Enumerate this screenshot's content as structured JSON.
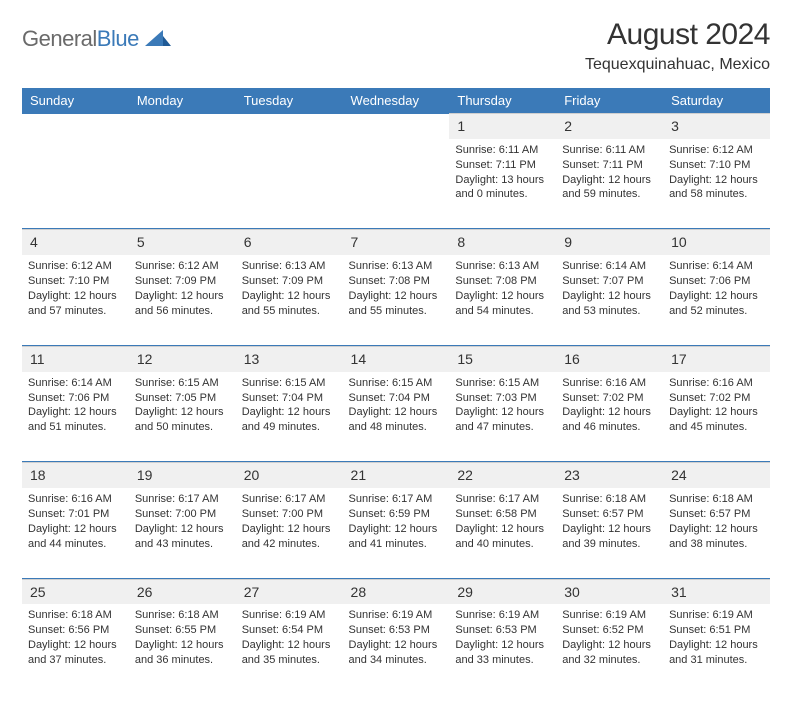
{
  "brand": {
    "part1": "General",
    "part2": "Blue"
  },
  "title": "August 2024",
  "subtitle": "Tequexquinahuac, Mexico",
  "colors": {
    "header_bg": "#3b7ab8",
    "header_text": "#ffffff",
    "daynum_bg": "#f0f0f0",
    "text": "#333333",
    "separator": "#3b7ab8",
    "page_bg": "#ffffff",
    "logo_gray": "#6a6a6a",
    "logo_blue": "#3b7ab8"
  },
  "typography": {
    "title_fontsize": 30,
    "subtitle_fontsize": 16,
    "dayheader_fontsize": 13,
    "daynum_fontsize": 14,
    "cell_fontsize": 11,
    "font_family": "Arial"
  },
  "day_headers": [
    "Sunday",
    "Monday",
    "Tuesday",
    "Wednesday",
    "Thursday",
    "Friday",
    "Saturday"
  ],
  "weeks": [
    [
      null,
      null,
      null,
      null,
      {
        "n": "1",
        "sr": "6:11 AM",
        "ss": "7:11 PM",
        "dl": "13 hours and 0 minutes."
      },
      {
        "n": "2",
        "sr": "6:11 AM",
        "ss": "7:11 PM",
        "dl": "12 hours and 59 minutes."
      },
      {
        "n": "3",
        "sr": "6:12 AM",
        "ss": "7:10 PM",
        "dl": "12 hours and 58 minutes."
      }
    ],
    [
      {
        "n": "4",
        "sr": "6:12 AM",
        "ss": "7:10 PM",
        "dl": "12 hours and 57 minutes."
      },
      {
        "n": "5",
        "sr": "6:12 AM",
        "ss": "7:09 PM",
        "dl": "12 hours and 56 minutes."
      },
      {
        "n": "6",
        "sr": "6:13 AM",
        "ss": "7:09 PM",
        "dl": "12 hours and 55 minutes."
      },
      {
        "n": "7",
        "sr": "6:13 AM",
        "ss": "7:08 PM",
        "dl": "12 hours and 55 minutes."
      },
      {
        "n": "8",
        "sr": "6:13 AM",
        "ss": "7:08 PM",
        "dl": "12 hours and 54 minutes."
      },
      {
        "n": "9",
        "sr": "6:14 AM",
        "ss": "7:07 PM",
        "dl": "12 hours and 53 minutes."
      },
      {
        "n": "10",
        "sr": "6:14 AM",
        "ss": "7:06 PM",
        "dl": "12 hours and 52 minutes."
      }
    ],
    [
      {
        "n": "11",
        "sr": "6:14 AM",
        "ss": "7:06 PM",
        "dl": "12 hours and 51 minutes."
      },
      {
        "n": "12",
        "sr": "6:15 AM",
        "ss": "7:05 PM",
        "dl": "12 hours and 50 minutes."
      },
      {
        "n": "13",
        "sr": "6:15 AM",
        "ss": "7:04 PM",
        "dl": "12 hours and 49 minutes."
      },
      {
        "n": "14",
        "sr": "6:15 AM",
        "ss": "7:04 PM",
        "dl": "12 hours and 48 minutes."
      },
      {
        "n": "15",
        "sr": "6:15 AM",
        "ss": "7:03 PM",
        "dl": "12 hours and 47 minutes."
      },
      {
        "n": "16",
        "sr": "6:16 AM",
        "ss": "7:02 PM",
        "dl": "12 hours and 46 minutes."
      },
      {
        "n": "17",
        "sr": "6:16 AM",
        "ss": "7:02 PM",
        "dl": "12 hours and 45 minutes."
      }
    ],
    [
      {
        "n": "18",
        "sr": "6:16 AM",
        "ss": "7:01 PM",
        "dl": "12 hours and 44 minutes."
      },
      {
        "n": "19",
        "sr": "6:17 AM",
        "ss": "7:00 PM",
        "dl": "12 hours and 43 minutes."
      },
      {
        "n": "20",
        "sr": "6:17 AM",
        "ss": "7:00 PM",
        "dl": "12 hours and 42 minutes."
      },
      {
        "n": "21",
        "sr": "6:17 AM",
        "ss": "6:59 PM",
        "dl": "12 hours and 41 minutes."
      },
      {
        "n": "22",
        "sr": "6:17 AM",
        "ss": "6:58 PM",
        "dl": "12 hours and 40 minutes."
      },
      {
        "n": "23",
        "sr": "6:18 AM",
        "ss": "6:57 PM",
        "dl": "12 hours and 39 minutes."
      },
      {
        "n": "24",
        "sr": "6:18 AM",
        "ss": "6:57 PM",
        "dl": "12 hours and 38 minutes."
      }
    ],
    [
      {
        "n": "25",
        "sr": "6:18 AM",
        "ss": "6:56 PM",
        "dl": "12 hours and 37 minutes."
      },
      {
        "n": "26",
        "sr": "6:18 AM",
        "ss": "6:55 PM",
        "dl": "12 hours and 36 minutes."
      },
      {
        "n": "27",
        "sr": "6:19 AM",
        "ss": "6:54 PM",
        "dl": "12 hours and 35 minutes."
      },
      {
        "n": "28",
        "sr": "6:19 AM",
        "ss": "6:53 PM",
        "dl": "12 hours and 34 minutes."
      },
      {
        "n": "29",
        "sr": "6:19 AM",
        "ss": "6:53 PM",
        "dl": "12 hours and 33 minutes."
      },
      {
        "n": "30",
        "sr": "6:19 AM",
        "ss": "6:52 PM",
        "dl": "12 hours and 32 minutes."
      },
      {
        "n": "31",
        "sr": "6:19 AM",
        "ss": "6:51 PM",
        "dl": "12 hours and 31 minutes."
      }
    ]
  ],
  "labels": {
    "sunrise_prefix": "Sunrise: ",
    "sunset_prefix": "Sunset: ",
    "daylight_prefix": "Daylight: "
  }
}
